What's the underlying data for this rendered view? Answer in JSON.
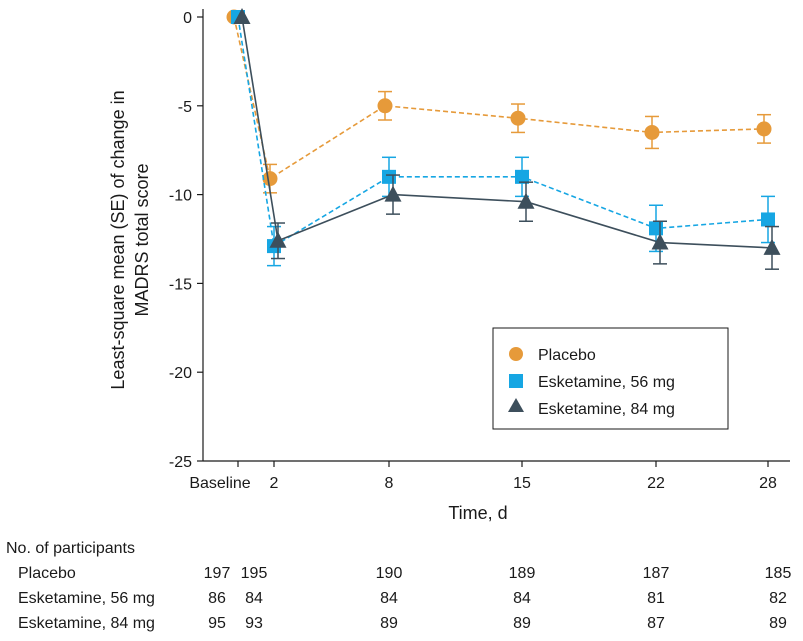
{
  "chart_data": {
    "type": "line",
    "x_labels": [
      "Baseline",
      "2",
      "8",
      "15",
      "22",
      "28"
    ],
    "x_days": [
      0,
      2,
      8,
      15,
      22,
      28
    ],
    "xlabel": "Time, d",
    "ylabel_line1": "Least-square mean (SE) of change in",
    "ylabel_line2": "MADRS total score",
    "ylim": [
      -25,
      0
    ],
    "yticks": [
      0,
      -5,
      -10,
      -15,
      -20,
      -25
    ],
    "ytick_labels": [
      "0",
      "-5",
      "-10",
      "-15",
      "-20",
      "-25"
    ],
    "legend_position": "lower-right",
    "series": [
      {
        "name": "Placebo",
        "marker": "circle",
        "line": "dashed",
        "color": "#e69a3a",
        "values": [
          0,
          -9.1,
          -5.0,
          -5.7,
          -6.5,
          -6.3
        ],
        "se": [
          0,
          0.8,
          0.8,
          0.8,
          0.9,
          0.8
        ]
      },
      {
        "name": "Esketamine, 56 mg",
        "marker": "square",
        "line": "dashed",
        "color": "#16a6e3",
        "values": [
          0,
          -12.9,
          -9.0,
          -9.0,
          -11.9,
          -11.4
        ],
        "se": [
          0,
          1.1,
          1.1,
          1.1,
          1.3,
          1.3
        ]
      },
      {
        "name": "Esketamine, 84 mg",
        "marker": "triangle",
        "line": "solid",
        "color": "#3d4f5c",
        "values": [
          0,
          -12.6,
          -10.0,
          -10.4,
          -12.7,
          -13.0
        ],
        "se": [
          0,
          1.0,
          1.1,
          1.1,
          1.2,
          1.2
        ]
      }
    ]
  },
  "participants_table": {
    "title": "No. of participants",
    "rows": [
      {
        "label": "Placebo",
        "values": [
          "197",
          "195",
          "190",
          "189",
          "187",
          "185"
        ]
      },
      {
        "label": "Esketamine, 56 mg",
        "values": [
          "86",
          "84",
          "84",
          "84",
          "81",
          "82"
        ]
      },
      {
        "label": "Esketamine, 84 mg",
        "values": [
          "95",
          "93",
          "89",
          "89",
          "87",
          "89"
        ]
      }
    ]
  }
}
